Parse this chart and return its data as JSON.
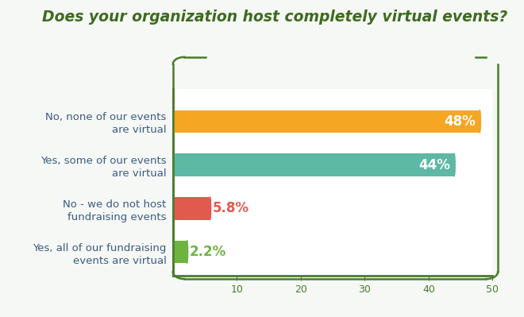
{
  "title": "Does your organization host completely virtual events?",
  "title_color": "#3d6b1e",
  "title_fontsize": 13.5,
  "categories": [
    "No, none of our events\nare virtual",
    "Yes, some of our events\nare virtual",
    "No - we do not host\nfundraising events",
    "Yes, all of our fundraising\nevents are virtual"
  ],
  "values": [
    48,
    44,
    5.8,
    2.2
  ],
  "bar_colors": [
    "#F5A623",
    "#5DB8A4",
    "#E05A4E",
    "#6DB33F"
  ],
  "label_colors": [
    "#ffffff",
    "#ffffff",
    "#E05A4E",
    "#6DB33F"
  ],
  "labels": [
    "48%",
    "44%",
    "5.8%",
    "2.2%"
  ],
  "xlim": [
    0,
    50
  ],
  "xticks": [
    10,
    20,
    30,
    40,
    50
  ],
  "bg_color": "#f5f8f5",
  "plot_bg": "#ffffff",
  "bar_height": 0.52,
  "label_fontsize": 12,
  "category_fontsize": 9.5,
  "category_color": "#3d5a80",
  "tick_color": "#4a7c2f",
  "axis_color": "#4a7c2f",
  "tick_label_color": "#4a7c2f"
}
